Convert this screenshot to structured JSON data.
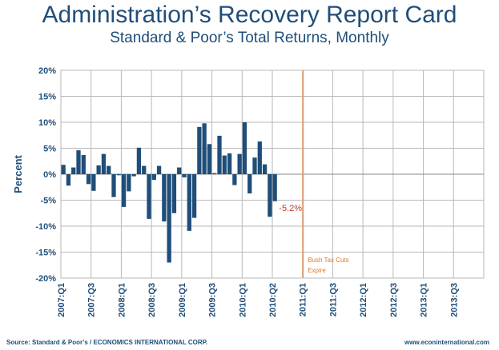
{
  "title": "Administration’s Recovery Report Card",
  "subtitle": "Standard & Poor’s Total Returns, Monthly",
  "source_left": "Source: Standard & Poor’s / ECONOMICS INTERNATIONAL CORP.",
  "source_right": "www.econinternational.com",
  "colors": {
    "bar": "#1f4e79",
    "grid": "#b8b8b8",
    "marker": "#e0a070",
    "marker_text": "#e07b20",
    "label_red": "#c0392b",
    "text": "#1f4e79"
  },
  "chart_data": {
    "type": "bar",
    "ylabel": "Percent",
    "ylim": [
      -20,
      20
    ],
    "y_ticks": [
      "20%",
      "15%",
      "10%",
      "5%",
      "0%",
      "-5%",
      "-10%",
      "-15%",
      "-20%"
    ],
    "x_tick_labels": [
      "2007:Q1",
      "2007:Q3",
      "2008:Q1",
      "2008:Q3",
      "2009:Q1",
      "2009:Q3",
      "2010:Q1",
      "2010:Q2",
      "2011:Q1",
      "2011:Q3",
      "2012:Q1",
      "2012:Q3",
      "2013:Q1",
      "2013:Q3"
    ],
    "values": [
      1.8,
      -2.2,
      1.3,
      4.6,
      3.7,
      -1.9,
      -3.2,
      1.7,
      3.9,
      1.6,
      -4.4,
      -0.2,
      -6.3,
      -3.3,
      -0.4,
      5.1,
      1.6,
      -8.6,
      -1.1,
      1.6,
      -9.1,
      -17.0,
      -7.5,
      1.3,
      -0.6,
      -10.9,
      -8.4,
      9.1,
      9.8,
      5.8,
      0.2,
      7.4,
      3.6,
      4.0,
      -2.1,
      3.9,
      10.0,
      -3.7,
      3.2,
      6.3,
      1.9,
      -8.2,
      -5.2
    ],
    "data_label": "-5.2%",
    "annotation": {
      "text_line1": "Bush Tax Cuts",
      "text_line2": "Expire",
      "at_label": "2011:Q1"
    },
    "grid": true
  }
}
